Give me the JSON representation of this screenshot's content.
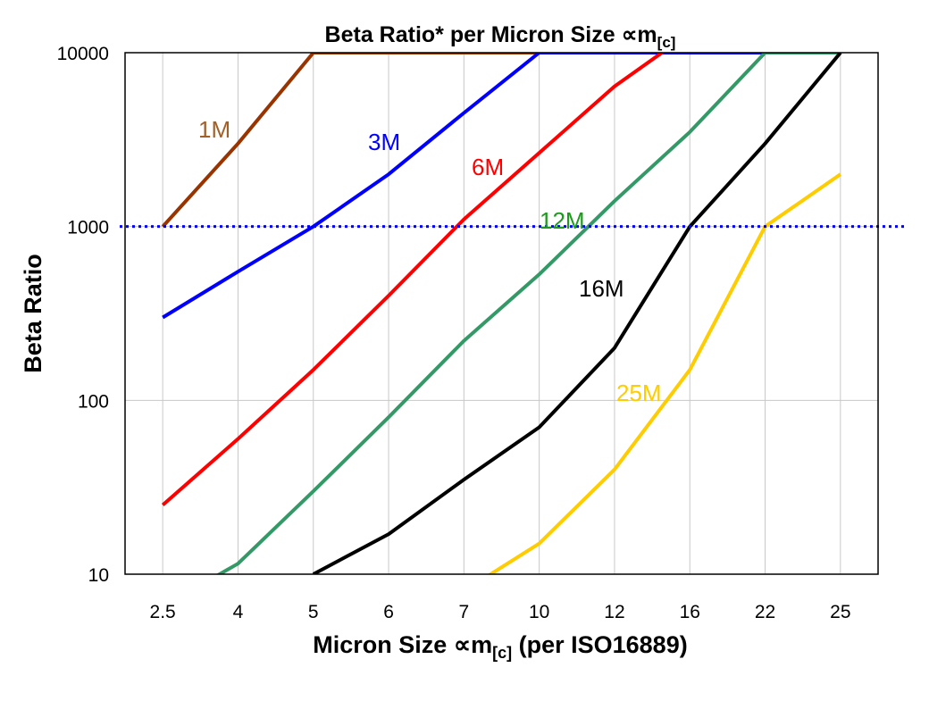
{
  "chart_data": {
    "type": "line",
    "title": {
      "main": "Beta Ratio* per Micron Size ∝m",
      "sub": "[c]"
    },
    "xlabel": {
      "main": "Micron Size ∝m",
      "sub": "[c]",
      "suffix": " (per ISO16889)"
    },
    "ylabel": "Beta Ratio",
    "y_scale": "log",
    "ylim": [
      10,
      10000
    ],
    "y_ticks": [
      "10",
      "100",
      "1000",
      "10000"
    ],
    "categories": [
      "2.5",
      "4",
      "5",
      "6",
      "7",
      "10",
      "12",
      "16",
      "22",
      "25"
    ],
    "grid": true,
    "legend": "none (inline series labels)",
    "reference_line": {
      "y": 1000,
      "style": "dotted",
      "color": "#0000FF"
    },
    "series": [
      {
        "name": "1M",
        "color": "#993300",
        "label_color": "#A0602A",
        "values": [
          1000,
          3000,
          10000,
          10000,
          10000,
          10000,
          null,
          null,
          null,
          null
        ]
      },
      {
        "name": "3M",
        "color": "#0000FF",
        "label_color": "#0000FF",
        "values": [
          300,
          550,
          1000,
          2000,
          4500,
          10000,
          10000,
          10000,
          10000,
          null
        ]
      },
      {
        "name": "6M",
        "color": "#FF0000",
        "label_color": "#FF0000",
        "values": [
          25,
          60,
          150,
          400,
          1100,
          2650,
          6400,
          13000,
          null,
          null
        ]
      },
      {
        "name": "12M",
        "color": "#339966",
        "label_color": "#1E9A1E",
        "values": [
          6.5,
          11.5,
          30,
          80,
          220,
          530,
          1400,
          3500,
          10000,
          10000
        ]
      },
      {
        "name": "16M",
        "color": "#000000",
        "label_color": "#000000",
        "values": [
          null,
          null,
          10,
          17,
          35,
          70,
          200,
          1000,
          3000,
          10000
        ]
      },
      {
        "name": "25M",
        "color": "#FFCC00",
        "label_color": "#FFCC00",
        "values": [
          null,
          null,
          null,
          null,
          8,
          15,
          40,
          150,
          1000,
          2000
        ]
      }
    ]
  }
}
